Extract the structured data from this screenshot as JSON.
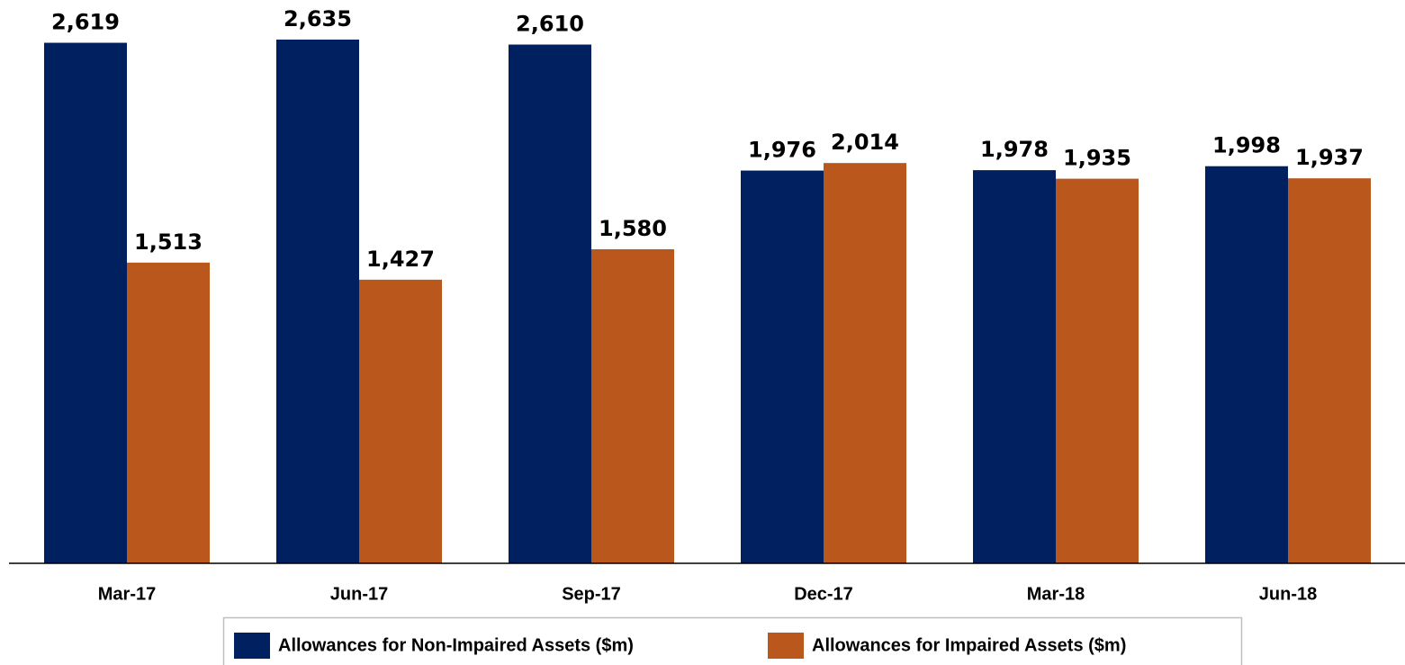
{
  "chart_data": {
    "type": "bar",
    "categories": [
      "Mar-17",
      "Jun-17",
      "Sep-17",
      "Dec-17",
      "Mar-18",
      "Jun-18"
    ],
    "series": [
      {
        "name": "Allowances for Non-Impaired Assets ($m)",
        "color": "#002060",
        "values": [
          2619,
          2635,
          2610,
          1976,
          1978,
          1998
        ],
        "value_labels": [
          "2,619",
          "2,635",
          "2,610",
          "1,976",
          "1,978",
          "1,998"
        ]
      },
      {
        "name": "Allowances for Impaired Assets ($m)",
        "color": "#b9571d",
        "values": [
          1513,
          1427,
          1580,
          2014,
          1935,
          1937
        ],
        "value_labels": [
          "1,513",
          "1,427",
          "1,580",
          "2,014",
          "1,935",
          "1,937"
        ]
      }
    ],
    "legend": "bottom"
  }
}
